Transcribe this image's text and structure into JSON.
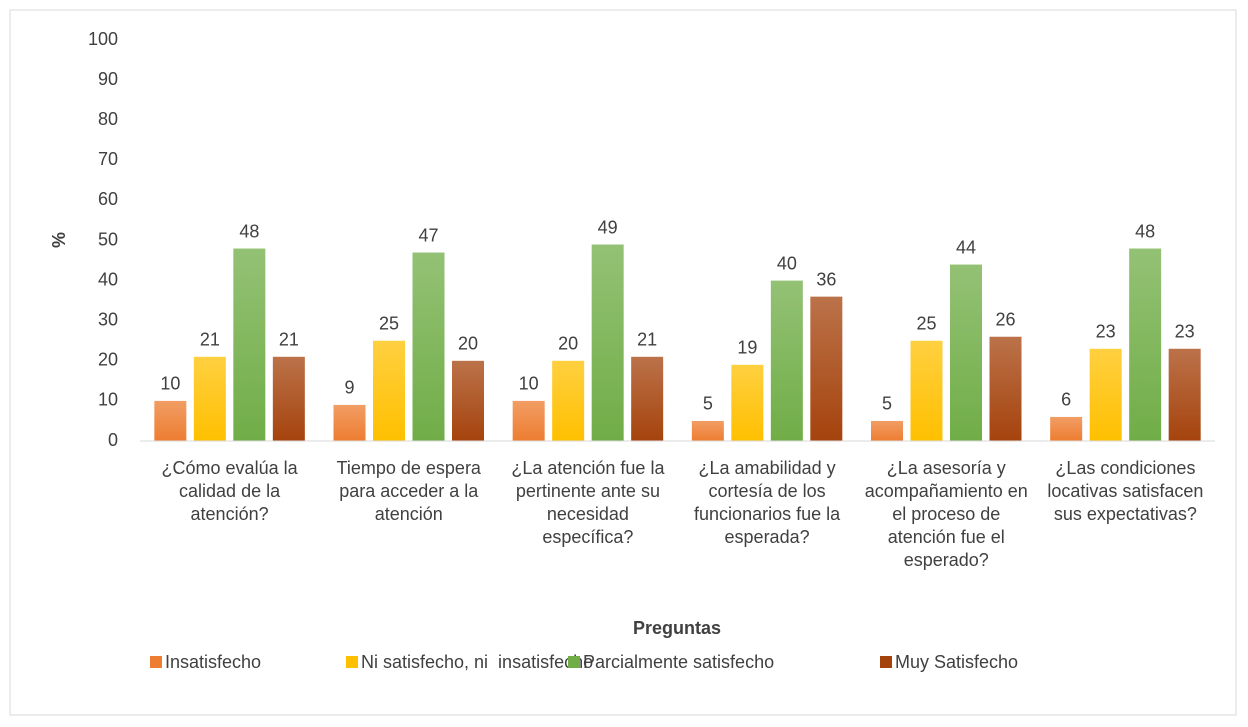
{
  "chart_data": {
    "type": "bar",
    "categories": [
      "¿Cómo evalúa la calidad de la atención?",
      "Tiempo de espera para acceder a la atención",
      "¿La atención fue la pertinente ante su necesidad específica?",
      "¿La amabilidad y cortesía de los funcionarios fue la esperada?",
      "¿La asesoría y acompañamiento en el proceso de atención fue el esperado?",
      "¿Las condiciones locativas satisfacen sus expectativas?"
    ],
    "series": [
      {
        "name": "Insatisfecho",
        "color": "#ed7d31",
        "values": [
          10,
          9,
          10,
          5,
          5,
          6
        ]
      },
      {
        "name": "Ni satisfecho, ni  insatisfecho",
        "color": "#ffc000",
        "values": [
          21,
          25,
          20,
          19,
          25,
          23
        ]
      },
      {
        "name": "Parcialmente satisfecho",
        "color": "#70ad47",
        "values": [
          48,
          47,
          49,
          40,
          44,
          48
        ]
      },
      {
        "name": "Muy Satisfecho",
        "color": "#a5430d",
        "values": [
          21,
          20,
          21,
          36,
          26,
          23
        ]
      }
    ],
    "x_label": "Preguntas",
    "y_label": "%",
    "ylim": [
      0,
      100
    ],
    "yticks": [
      0,
      10,
      20,
      30,
      40,
      50,
      60,
      70,
      80,
      90,
      100
    ],
    "legend": "bottom"
  }
}
